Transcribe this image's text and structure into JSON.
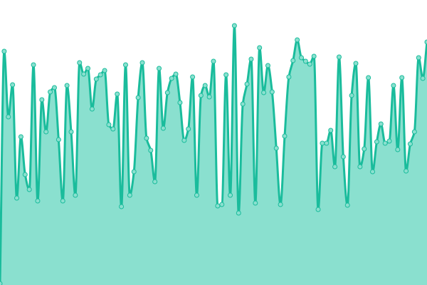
{
  "chart_data": {
    "type": "area",
    "title": "",
    "xlabel": "",
    "ylabel": "",
    "ylim": [
      0,
      400
    ],
    "grid": false,
    "legend": "none",
    "curve": "smooth",
    "colors": {
      "line": "#1abc9c",
      "fill": "#8ae0cf",
      "point_fill": "#8ae0cf",
      "point_stroke": "#1abc9c"
    },
    "series": [
      {
        "values": [
          2,
          328,
          236,
          281,
          122,
          208,
          155,
          134,
          309,
          118,
          260,
          215,
          271,
          277,
          204,
          118,
          280,
          215,
          126,
          312,
          296,
          304,
          247,
          289,
          295,
          301,
          225,
          219,
          268,
          110,
          309,
          126,
          159,
          263,
          312,
          206,
          189,
          145,
          304,
          220,
          270,
          290,
          296,
          256,
          203,
          219,
          292,
          126,
          266,
          280,
          264,
          314,
          111,
          113,
          295,
          126,
          364,
          101,
          254,
          282,
          317,
          115,
          333,
          270,
          308,
          271,
          192,
          113,
          209,
          292,
          315,
          344,
          319,
          314,
          310,
          321,
          106,
          199,
          199,
          217,
          166,
          320,
          180,
          112,
          266,
          311,
          166,
          191,
          291,
          159,
          201,
          226,
          199,
          202,
          280,
          190,
          291,
          160,
          198,
          215,
          319,
          290,
          341
        ]
      }
    ]
  }
}
